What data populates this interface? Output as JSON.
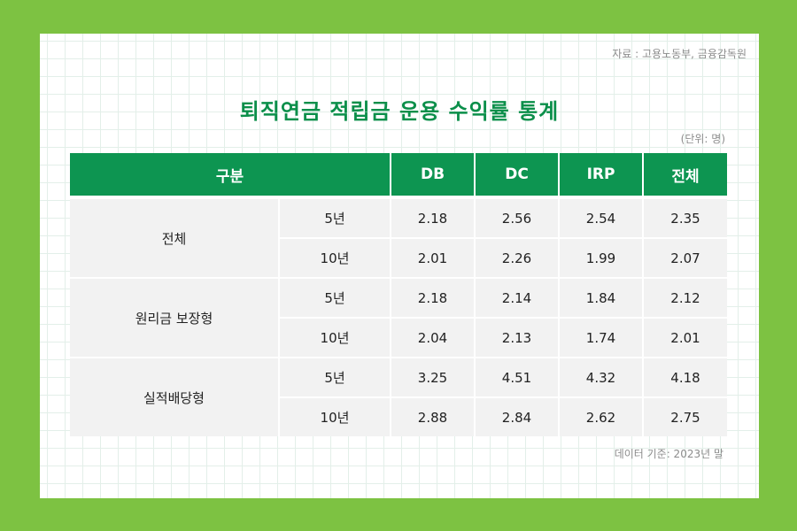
{
  "source": "자료 : 고용노동부, 금융감독원",
  "title": "퇴직연금 적립금 운용 수익률 통계",
  "unit": "(단위: 명)",
  "note": "데이터 기준: 2023년 말",
  "header": {
    "category": "구분",
    "columns": [
      "DB",
      "DC",
      "IRP",
      "전체"
    ]
  },
  "groups": [
    {
      "name": "전체",
      "rows": [
        {
          "period": "5년",
          "values": [
            "2.18",
            "2.56",
            "2.54",
            "2.35"
          ]
        },
        {
          "period": "10년",
          "values": [
            "2.01",
            "2.26",
            "1.99",
            "2.07"
          ]
        }
      ]
    },
    {
      "name": "원리금 보장형",
      "rows": [
        {
          "period": "5년",
          "values": [
            "2.18",
            "2.14",
            "1.84",
            "2.12"
          ]
        },
        {
          "period": "10년",
          "values": [
            "2.04",
            "2.13",
            "1.74",
            "2.01"
          ]
        }
      ]
    },
    {
      "name": "실적배당형",
      "rows": [
        {
          "period": "5년",
          "values": [
            "3.25",
            "4.51",
            "4.32",
            "4.18"
          ]
        },
        {
          "period": "10년",
          "values": [
            "2.88",
            "2.84",
            "2.62",
            "2.75"
          ]
        }
      ]
    }
  ]
}
